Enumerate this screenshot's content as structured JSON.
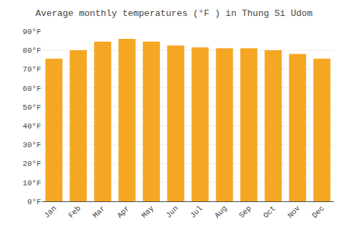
{
  "chart_data": {
    "type": "bar",
    "title": "Average monthly temperatures (°F ) in Thung Si Udom",
    "categories": [
      "Jan",
      "Feb",
      "Mar",
      "Apr",
      "May",
      "Jun",
      "Jul",
      "Aug",
      "Sep",
      "Oct",
      "Nov",
      "Dec"
    ],
    "values": [
      75.5,
      80,
      84.5,
      86,
      84.5,
      82.5,
      81.5,
      81,
      81,
      80,
      78,
      75.5
    ],
    "color": "#F5A623",
    "ylim": [
      0,
      90
    ],
    "yticks": [
      {
        "value": 0,
        "label": "0°F"
      },
      {
        "value": 10,
        "label": "10°F"
      },
      {
        "value": 20,
        "label": "20°F"
      },
      {
        "value": 30,
        "label": "30°F"
      },
      {
        "value": 40,
        "label": "40°F"
      },
      {
        "value": 50,
        "label": "50°F"
      },
      {
        "value": 60,
        "label": "60°F"
      },
      {
        "value": 70,
        "label": "70°F"
      },
      {
        "value": 80,
        "label": "80°F"
      },
      {
        "value": 90,
        "label": "90°F"
      }
    ],
    "grid": true
  }
}
